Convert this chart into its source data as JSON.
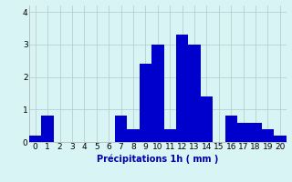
{
  "categories": [
    0,
    1,
    2,
    3,
    4,
    5,
    6,
    7,
    8,
    9,
    10,
    11,
    12,
    13,
    14,
    15,
    16,
    17,
    18,
    19,
    20
  ],
  "values": [
    0.2,
    0.8,
    0.0,
    0.0,
    0.0,
    0.0,
    0.0,
    0.8,
    0.4,
    2.4,
    3.0,
    0.4,
    3.3,
    3.0,
    1.4,
    0.0,
    0.8,
    0.6,
    0.6,
    0.4,
    0.2
  ],
  "bar_color": "#0000cc",
  "background_color": "#d8f4f4",
  "grid_color": "#b0c8c8",
  "xlabel": "Précipitations 1h ( mm )",
  "xlabel_color": "#0000aa",
  "xlabel_fontsize": 7,
  "ylim": [
    0,
    4.2
  ],
  "yticks": [
    0,
    1,
    2,
    3,
    4
  ],
  "tick_fontsize": 6.5,
  "bar_width": 1.0,
  "figsize": [
    3.2,
    2.0
  ],
  "dpi": 100
}
